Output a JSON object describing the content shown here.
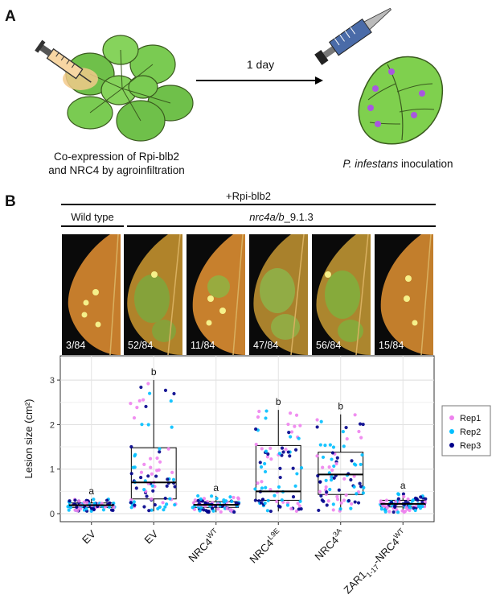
{
  "panel_a": {
    "letter": "A",
    "left_caption_line1": "Co-expression of Rpi-blb2",
    "left_caption_line2": "and NRC4 by agroinfiltration",
    "arrow_label": "1 day",
    "right_caption_italic": "P. infestans",
    "right_caption_rest": " inoculation"
  },
  "panel_b": {
    "letter": "B",
    "top_header": "+Rpi-blb2",
    "wild_type_label": "Wild type",
    "mutant_label_italic": "nrc4a/b",
    "mutant_label_rest": "_9.1.3",
    "leaves": [
      {
        "count": "3/84"
      },
      {
        "count": "52/84"
      },
      {
        "count": "11/84"
      },
      {
        "count": "47/84"
      },
      {
        "count": "56/84"
      },
      {
        "count": "15/84"
      }
    ]
  },
  "chart_data": {
    "type": "box",
    "ylabel": "Lesion size (cm²)",
    "ylim": [
      0,
      3.6
    ],
    "yticks": [
      0,
      1,
      2,
      3
    ],
    "categories": [
      {
        "base": "EV",
        "sup": "",
        "sub": "",
        "post": "",
        "sup2": ""
      },
      {
        "base": "EV",
        "sup": "",
        "sub": "",
        "post": "",
        "sup2": ""
      },
      {
        "base": "NRC4",
        "sup": "WT",
        "sub": "",
        "post": "",
        "sup2": ""
      },
      {
        "base": "NRC4",
        "sup": "L9E",
        "sub": "",
        "post": "",
        "sup2": ""
      },
      {
        "base": "NRC4",
        "sup": "3A",
        "sub": "",
        "post": "",
        "sup2": ""
      },
      {
        "base": "ZAR1",
        "sup": "",
        "sub": "1-17",
        "post": "-NRC4",
        "sup2": "WT"
      }
    ],
    "boxes": [
      {
        "q1": 0.14,
        "median": 0.19,
        "q3": 0.24,
        "whisker_low": 0.05,
        "whisker_high": 0.33,
        "letter": "a"
      },
      {
        "q1": 0.33,
        "median": 0.7,
        "q3": 1.48,
        "whisker_low": 0.05,
        "whisker_high": 3.0,
        "letter": "b"
      },
      {
        "q1": 0.14,
        "median": 0.2,
        "q3": 0.27,
        "whisker_low": 0.03,
        "whisker_high": 0.4,
        "letter": "a"
      },
      {
        "q1": 0.3,
        "median": 0.5,
        "q3": 1.53,
        "whisker_low": 0.05,
        "whisker_high": 2.33,
        "letter": "b"
      },
      {
        "q1": 0.43,
        "median": 0.88,
        "q3": 1.38,
        "whisker_low": 0.05,
        "whisker_high": 2.23,
        "letter": "b"
      },
      {
        "q1": 0.15,
        "median": 0.22,
        "q3": 0.3,
        "whisker_low": 0.03,
        "whisker_high": 0.45,
        "letter": "a"
      }
    ],
    "series": [
      {
        "name": "Rep1",
        "color": "#ee82ee"
      },
      {
        "name": "Rep2",
        "color": "#00bfff"
      },
      {
        "name": "Rep3",
        "color": "#00008b"
      }
    ],
    "grid": true,
    "legend_position": "right"
  }
}
